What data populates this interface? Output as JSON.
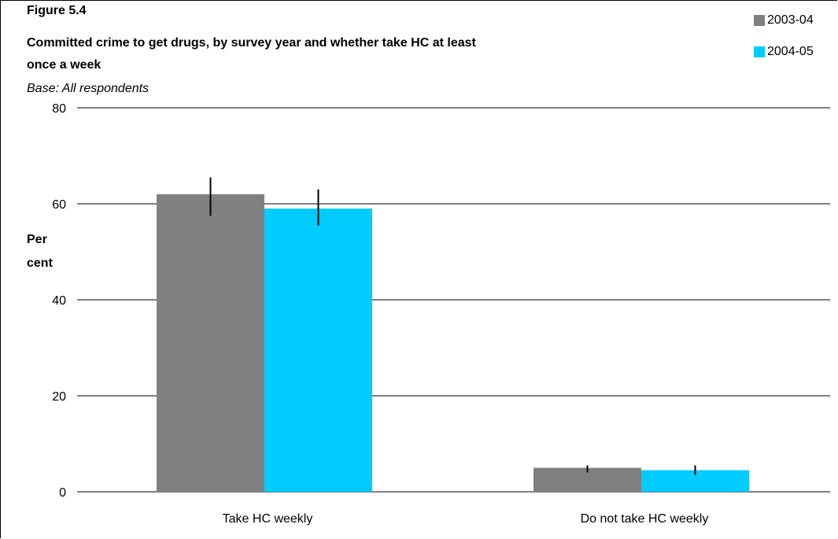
{
  "figure_label": "Figure 5.4",
  "title_line1": "Committed crime to get drugs, by survey year and whether take HC at least",
  "title_line2": "once a week",
  "base_note": "Base: All respondents",
  "ylabel_line1": "Per",
  "ylabel_line2": "cent",
  "colors": {
    "s2003": "#808080",
    "s2004": "#00ccff"
  },
  "chart_data": {
    "type": "bar",
    "title": "Committed crime to get drugs, by survey year and whether take HC at least once a week",
    "ylabel": "Per cent",
    "categories": [
      "Take HC weekly",
      "Do not take HC weekly"
    ],
    "series": [
      {
        "name": "2003-04",
        "values": [
          62,
          5
        ],
        "error_low": [
          57.5,
          4
        ],
        "error_high": [
          65.5,
          5.5
        ]
      },
      {
        "name": "2004-05",
        "values": [
          59,
          4.5
        ],
        "error_low": [
          55.5,
          3.5
        ],
        "error_high": [
          63,
          5.5
        ]
      }
    ],
    "yticks": [
      0,
      20,
      40,
      60,
      80
    ],
    "ylim": [
      0,
      80
    ],
    "grid": true,
    "legend": "top-right"
  }
}
